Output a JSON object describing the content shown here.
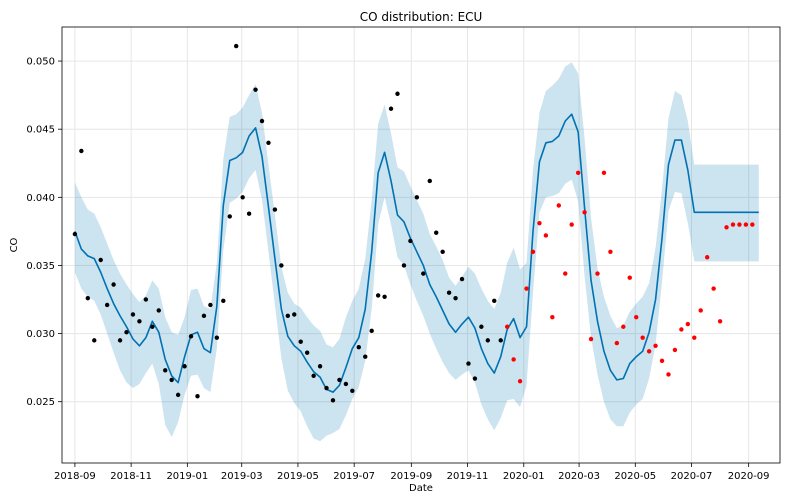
{
  "chart_data": {
    "type": "line",
    "title": "CO distribution: ECU",
    "xlabel": "Date",
    "ylabel": "CO",
    "xlim": [
      "2018-08-18",
      "2020-10-05"
    ],
    "ylim": [
      0.0205,
      0.0525
    ],
    "grid": true,
    "x_ticks": [
      {
        "date": "2018-09-01",
        "label": "2018-09"
      },
      {
        "date": "2018-11-01",
        "label": "2018-11"
      },
      {
        "date": "2019-01-01",
        "label": "2019-01"
      },
      {
        "date": "2019-03-01",
        "label": "2019-03"
      },
      {
        "date": "2019-05-01",
        "label": "2019-05"
      },
      {
        "date": "2019-07-01",
        "label": "2019-07"
      },
      {
        "date": "2019-09-01",
        "label": "2019-09"
      },
      {
        "date": "2019-11-01",
        "label": "2019-11"
      },
      {
        "date": "2020-01-01",
        "label": "2020-01"
      },
      {
        "date": "2020-03-01",
        "label": "2020-03"
      },
      {
        "date": "2020-05-01",
        "label": "2020-05"
      },
      {
        "date": "2020-07-01",
        "label": "2020-07"
      },
      {
        "date": "2020-09-01",
        "label": "2020-09"
      }
    ],
    "y_ticks": [
      {
        "value": 0.025,
        "label": "0.025"
      },
      {
        "value": 0.03,
        "label": "0.030"
      },
      {
        "value": 0.035,
        "label": "0.035"
      },
      {
        "value": 0.04,
        "label": "0.040"
      },
      {
        "value": 0.045,
        "label": "0.045"
      },
      {
        "value": 0.05,
        "label": "0.050"
      }
    ],
    "colors": {
      "forecast_line": "#0072b2",
      "interval_fill": "#0072b2",
      "observed_points": "#000000",
      "test_points": "#ff0000",
      "grid": "#e6e6e6"
    },
    "forecast": {
      "x": [
        "2018-09-01",
        "2018-09-08",
        "2018-09-15",
        "2018-09-22",
        "2018-09-29",
        "2018-10-06",
        "2018-10-13",
        "2018-10-20",
        "2018-10-27",
        "2018-11-03",
        "2018-11-10",
        "2018-11-17",
        "2018-11-24",
        "2018-12-01",
        "2018-12-08",
        "2018-12-15",
        "2018-12-22",
        "2018-12-29",
        "2019-01-05",
        "2019-01-12",
        "2019-01-19",
        "2019-01-26",
        "2019-02-02",
        "2019-02-09",
        "2019-02-16",
        "2019-02-23",
        "2019-03-02",
        "2019-03-09",
        "2019-03-16",
        "2019-03-23",
        "2019-03-30",
        "2019-04-06",
        "2019-04-13",
        "2019-04-20",
        "2019-04-27",
        "2019-05-04",
        "2019-05-11",
        "2019-05-18",
        "2019-05-25",
        "2019-06-01",
        "2019-06-08",
        "2019-06-15",
        "2019-06-22",
        "2019-06-29",
        "2019-07-06",
        "2019-07-13",
        "2019-07-20",
        "2019-07-27",
        "2019-08-03",
        "2019-08-10",
        "2019-08-17",
        "2019-08-24",
        "2019-08-31",
        "2019-09-07",
        "2019-09-14",
        "2019-09-21",
        "2019-09-28",
        "2019-10-05",
        "2019-10-12",
        "2019-10-19",
        "2019-10-26",
        "2019-11-02",
        "2019-11-09",
        "2019-11-16",
        "2019-11-23",
        "2019-11-30",
        "2019-12-07",
        "2019-12-14",
        "2019-12-21",
        "2019-12-28",
        "2020-01-04",
        "2020-01-11",
        "2020-01-18",
        "2020-01-25",
        "2020-02-01",
        "2020-02-08",
        "2020-02-15",
        "2020-02-22",
        "2020-02-29",
        "2020-03-07",
        "2020-03-14",
        "2020-03-21",
        "2020-03-28",
        "2020-04-04",
        "2020-04-11",
        "2020-04-18",
        "2020-04-25",
        "2020-05-02",
        "2020-05-09",
        "2020-05-16",
        "2020-05-23",
        "2020-05-30",
        "2020-06-06",
        "2020-06-13",
        "2020-06-20",
        "2020-06-27",
        "2020-07-04",
        "2020-07-11",
        "2020-07-18",
        "2020-07-25",
        "2020-08-01",
        "2020-08-08",
        "2020-08-15",
        "2020-08-22",
        "2020-08-29",
        "2020-09-05",
        "2020-09-12"
      ],
      "yhat": [
        0.0375,
        0.0362,
        0.0357,
        0.0355,
        0.0345,
        0.0333,
        0.0322,
        0.0313,
        0.0305,
        0.0296,
        0.0291,
        0.0297,
        0.0309,
        0.0301,
        0.0281,
        0.0269,
        0.0264,
        0.0283,
        0.0299,
        0.0301,
        0.0289,
        0.0286,
        0.032,
        0.0394,
        0.0427,
        0.0429,
        0.0433,
        0.0445,
        0.0451,
        0.043,
        0.0393,
        0.0355,
        0.0318,
        0.0298,
        0.0291,
        0.0287,
        0.0279,
        0.0272,
        0.0268,
        0.0259,
        0.0257,
        0.0262,
        0.0275,
        0.0289,
        0.0297,
        0.0318,
        0.036,
        0.0418,
        0.0433,
        0.0412,
        0.0387,
        0.0382,
        0.037,
        0.036,
        0.035,
        0.0336,
        0.0327,
        0.0317,
        0.0307,
        0.0301,
        0.0307,
        0.0312,
        0.0304,
        0.0289,
        0.0278,
        0.0271,
        0.0283,
        0.0303,
        0.0311,
        0.0297,
        0.0305,
        0.0375,
        0.0426,
        0.044,
        0.0441,
        0.0445,
        0.0456,
        0.0461,
        0.0448,
        0.0392,
        0.0339,
        0.0309,
        0.0287,
        0.0273,
        0.0266,
        0.0267,
        0.0278,
        0.0283,
        0.0287,
        0.0301,
        0.0325,
        0.037,
        0.0424,
        0.0442,
        0.0442,
        0.042,
        0.0389,
        0.0389,
        0.0389,
        0.0389,
        0.0389,
        0.0389,
        0.0389,
        0.0389,
        0.0389,
        0.0389,
        0.0389
      ],
      "yhat_lower": [
        0.0345,
        0.0333,
        0.0327,
        0.0324,
        0.0314,
        0.03,
        0.0286,
        0.0273,
        0.0264,
        0.026,
        0.0263,
        0.0271,
        0.0278,
        0.0263,
        0.0233,
        0.0224,
        0.0235,
        0.0255,
        0.0269,
        0.027,
        0.026,
        0.0257,
        0.0289,
        0.0361,
        0.0396,
        0.0399,
        0.0404,
        0.0414,
        0.042,
        0.0398,
        0.036,
        0.0321,
        0.0282,
        0.0258,
        0.0249,
        0.0243,
        0.0232,
        0.0223,
        0.0221,
        0.0225,
        0.0227,
        0.023,
        0.024,
        0.0252,
        0.0261,
        0.028,
        0.0318,
        0.038,
        0.04,
        0.038,
        0.0356,
        0.035,
        0.0336,
        0.0324,
        0.0313,
        0.03,
        0.0289,
        0.0279,
        0.0271,
        0.0266,
        0.027,
        0.0273,
        0.0264,
        0.0248,
        0.0237,
        0.0229,
        0.0238,
        0.0251,
        0.0252,
        0.0246,
        0.0262,
        0.033,
        0.0389,
        0.04,
        0.0401,
        0.0403,
        0.041,
        0.0413,
        0.0397,
        0.0342,
        0.0297,
        0.027,
        0.025,
        0.0237,
        0.0232,
        0.0232,
        0.0242,
        0.0248,
        0.0252,
        0.0267,
        0.0292,
        0.0338,
        0.039,
        0.0404,
        0.0403,
        0.0381,
        0.0353,
        0.0353,
        0.0353,
        0.0353,
        0.0353,
        0.0353,
        0.0353,
        0.0353,
        0.0353,
        0.0353,
        0.0353
      ],
      "yhat_upper": [
        0.0411,
        0.04,
        0.0391,
        0.0388,
        0.0378,
        0.0366,
        0.0354,
        0.0344,
        0.0336,
        0.0329,
        0.0323,
        0.0328,
        0.0339,
        0.0333,
        0.0312,
        0.0301,
        0.0299,
        0.0312,
        0.0332,
        0.0333,
        0.032,
        0.0318,
        0.0352,
        0.0428,
        0.0459,
        0.0461,
        0.0466,
        0.0475,
        0.0483,
        0.0462,
        0.0424,
        0.0387,
        0.0349,
        0.033,
        0.0322,
        0.0319,
        0.0312,
        0.0306,
        0.0302,
        0.0292,
        0.029,
        0.0296,
        0.0312,
        0.0324,
        0.0333,
        0.0355,
        0.0398,
        0.0454,
        0.0468,
        0.0447,
        0.0422,
        0.0419,
        0.0408,
        0.0398,
        0.0388,
        0.0373,
        0.0364,
        0.0354,
        0.0341,
        0.0335,
        0.0342,
        0.0349,
        0.0344,
        0.0333,
        0.0324,
        0.0318,
        0.033,
        0.0352,
        0.0363,
        0.0347,
        0.0352,
        0.042,
        0.0462,
        0.0478,
        0.0482,
        0.0487,
        0.0496,
        0.0499,
        0.0491,
        0.0443,
        0.0385,
        0.0348,
        0.0327,
        0.0313,
        0.0304,
        0.0306,
        0.0316,
        0.0322,
        0.0327,
        0.0337,
        0.0363,
        0.0406,
        0.0458,
        0.0478,
        0.0475,
        0.0456,
        0.0424,
        0.0424,
        0.0424,
        0.0424,
        0.0424,
        0.0424,
        0.0424,
        0.0424,
        0.0424,
        0.0424,
        0.0424
      ]
    },
    "observed": {
      "x": [
        "2018-09-01",
        "2018-09-08",
        "2018-09-15",
        "2018-09-22",
        "2018-09-29",
        "2018-10-06",
        "2018-10-13",
        "2018-10-20",
        "2018-10-27",
        "2018-11-03",
        "2018-11-10",
        "2018-11-17",
        "2018-11-24",
        "2018-12-01",
        "2018-12-08",
        "2018-12-15",
        "2018-12-22",
        "2018-12-29",
        "2019-01-05",
        "2019-01-12",
        "2019-01-19",
        "2019-01-26",
        "2019-02-02",
        "2019-02-09",
        "2019-02-16",
        "2019-02-23",
        "2019-03-02",
        "2019-03-09",
        "2019-03-16",
        "2019-03-23",
        "2019-03-30",
        "2019-04-06",
        "2019-04-13",
        "2019-04-20",
        "2019-04-27",
        "2019-05-04",
        "2019-05-11",
        "2019-05-18",
        "2019-05-25",
        "2019-06-01",
        "2019-06-08",
        "2019-06-15",
        "2019-06-22",
        "2019-06-29",
        "2019-07-06",
        "2019-07-13",
        "2019-07-20",
        "2019-07-27",
        "2019-08-03",
        "2019-08-10",
        "2019-08-17",
        "2019-08-24",
        "2019-08-31",
        "2019-09-07",
        "2019-09-14",
        "2019-09-21",
        "2019-09-28",
        "2019-10-05",
        "2019-10-12",
        "2019-10-19",
        "2019-10-26",
        "2019-11-02",
        "2019-11-09",
        "2019-11-16",
        "2019-11-23",
        "2019-11-30",
        "2019-12-07"
      ],
      "y": [
        0.0373,
        0.0434,
        0.0326,
        0.0295,
        0.0354,
        0.0321,
        0.0336,
        0.0295,
        0.0301,
        0.0314,
        0.0309,
        0.0325,
        0.0305,
        0.0317,
        0.0273,
        0.0266,
        0.0255,
        0.0276,
        0.0298,
        0.0254,
        0.0313,
        0.0321,
        0.0297,
        0.0324,
        0.0386,
        0.0511,
        0.04,
        0.0388,
        0.0479,
        0.0456,
        0.044,
        0.0391,
        0.035,
        0.0313,
        0.0314,
        0.0294,
        0.0286,
        0.0269,
        0.0276,
        0.026,
        0.0251,
        0.0266,
        0.0263,
        0.0258,
        0.029,
        0.0283,
        0.0302,
        0.0328,
        0.0327,
        0.0465,
        0.0476,
        0.035,
        0.0368,
        0.04,
        0.0344,
        0.0412,
        0.0374,
        0.036,
        0.033,
        0.0326,
        0.034,
        0.0278,
        0.0267,
        0.0305,
        0.0295,
        0.0324,
        0.0295
      ]
    },
    "test": {
      "x": [
        "2019-12-14",
        "2019-12-21",
        "2019-12-28",
        "2020-01-04",
        "2020-01-11",
        "2020-01-18",
        "2020-01-25",
        "2020-02-01",
        "2020-02-08",
        "2020-02-15",
        "2020-02-22",
        "2020-02-29",
        "2020-03-07",
        "2020-03-14",
        "2020-03-21",
        "2020-03-28",
        "2020-04-04",
        "2020-04-11",
        "2020-04-18",
        "2020-04-25",
        "2020-05-02",
        "2020-05-09",
        "2020-05-16",
        "2020-05-23",
        "2020-05-30",
        "2020-06-06",
        "2020-06-13",
        "2020-06-20",
        "2020-06-27",
        "2020-07-04",
        "2020-07-11",
        "2020-07-18",
        "2020-07-25",
        "2020-08-01",
        "2020-08-08",
        "2020-08-15",
        "2020-08-22",
        "2020-08-29",
        "2020-09-05"
      ],
      "y": [
        0.0305,
        0.0281,
        0.0265,
        0.0333,
        0.036,
        0.0381,
        0.0372,
        0.0312,
        0.0394,
        0.0344,
        0.038,
        0.0418,
        0.0389,
        0.0296,
        0.0344,
        0.0418,
        0.036,
        0.0293,
        0.0305,
        0.0341,
        0.0312,
        0.0297,
        0.0287,
        0.0291,
        0.028,
        0.027,
        0.0288,
        0.0303,
        0.0307,
        0.0297,
        0.0317,
        0.0356,
        0.0333,
        0.0309,
        0.0378,
        0.038,
        0.038,
        0.038,
        0.038
      ]
    }
  }
}
